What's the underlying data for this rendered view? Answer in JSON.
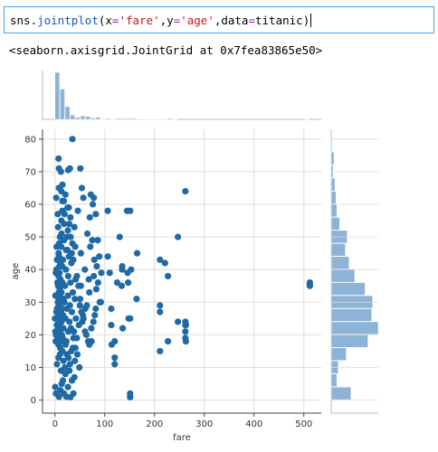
{
  "cell": {
    "code_parts": [
      "sns.",
      "jointplot",
      "(",
      "x",
      "=",
      "'fare'",
      ",",
      "y",
      "=",
      "'age'",
      ",",
      "data",
      "=",
      "titanic",
      ")"
    ],
    "output": "<seaborn.axisgrid.JointGrid at 0x7fea83865e50>"
  },
  "colors": {
    "point": "#1f6aa5",
    "hist": "#8db3d6",
    "grid": "#dddddd",
    "spine": "#444444",
    "focus_border": "#42a5f5"
  },
  "chart_data": {
    "type": "scatter",
    "xlabel": "fare",
    "ylabel": "age",
    "xlim": [
      -25,
      535
    ],
    "ylim": [
      -4,
      83
    ],
    "xticks": [
      0,
      100,
      200,
      300,
      400,
      500
    ],
    "yticks": [
      0,
      10,
      20,
      30,
      40,
      50,
      60,
      70,
      80
    ],
    "grid": true,
    "points": [
      [
        0,
        25
      ],
      [
        2,
        20
      ],
      [
        3,
        40
      ],
      [
        4,
        28
      ],
      [
        5,
        36
      ],
      [
        5,
        19
      ],
      [
        6,
        30
      ],
      [
        7,
        22
      ],
      [
        7,
        26
      ],
      [
        7.2,
        38
      ],
      [
        7.2,
        17
      ],
      [
        7.5,
        45
      ],
      [
        7.7,
        31
      ],
      [
        7.8,
        24
      ],
      [
        7.8,
        29
      ],
      [
        7.9,
        35
      ],
      [
        8,
        21
      ],
      [
        8,
        33
      ],
      [
        8,
        27
      ],
      [
        8.05,
        44
      ],
      [
        8.1,
        18
      ],
      [
        8.5,
        48
      ],
      [
        8.7,
        25
      ],
      [
        9,
        23
      ],
      [
        9.2,
        39
      ],
      [
        9.5,
        34
      ],
      [
        9.8,
        32
      ],
      [
        10,
        50
      ],
      [
        10,
        29
      ],
      [
        10.5,
        16
      ],
      [
        11,
        42
      ],
      [
        11,
        37
      ],
      [
        11.5,
        30
      ],
      [
        12,
        27
      ],
      [
        12.5,
        47
      ],
      [
        13,
        24
      ],
      [
        13,
        33
      ],
      [
        13,
        55
      ],
      [
        14,
        20
      ],
      [
        14.4,
        28
      ],
      [
        14.5,
        41
      ],
      [
        15,
        61
      ],
      [
        15,
        36
      ],
      [
        15.5,
        19
      ],
      [
        16,
        26
      ],
      [
        16,
        43
      ],
      [
        16.7,
        31
      ],
      [
        17,
        22
      ],
      [
        18,
        49
      ],
      [
        19,
        30
      ],
      [
        20,
        35
      ],
      [
        21,
        63
      ],
      [
        21,
        25
      ],
      [
        22,
        40
      ],
      [
        23,
        18
      ],
      [
        24,
        28
      ],
      [
        25,
        46
      ],
      [
        26,
        52
      ],
      [
        26,
        32
      ],
      [
        26.5,
        38
      ],
      [
        27,
        21
      ],
      [
        27.7,
        59
      ],
      [
        28,
        44
      ],
      [
        29,
        24
      ],
      [
        30,
        29
      ],
      [
        31,
        56
      ],
      [
        31,
        36
      ],
      [
        32,
        22
      ],
      [
        33,
        42
      ],
      [
        34,
        27
      ],
      [
        35,
        48
      ],
      [
        36,
        33
      ],
      [
        37,
        19
      ],
      [
        39,
        53
      ],
      [
        40,
        31
      ],
      [
        41.5,
        37
      ],
      [
        42,
        25
      ],
      [
        46,
        58
      ],
      [
        50,
        29
      ],
      [
        52,
        45
      ],
      [
        52,
        35
      ],
      [
        55,
        24
      ],
      [
        57,
        62
      ],
      [
        60,
        40
      ],
      [
        61,
        28
      ],
      [
        65,
        51
      ],
      [
        69,
        33
      ],
      [
        71,
        47
      ],
      [
        73,
        22
      ],
      [
        76,
        60
      ],
      [
        78,
        38
      ],
      [
        79,
        43
      ],
      [
        80,
        26
      ],
      [
        82,
        57
      ],
      [
        83,
        34
      ],
      [
        86,
        49
      ],
      [
        90,
        30
      ],
      [
        93,
        39
      ],
      [
        0.5,
        4
      ],
      [
        2,
        2
      ],
      [
        8,
        1
      ],
      [
        11,
        3
      ],
      [
        13.5,
        5
      ],
      [
        16,
        6
      ],
      [
        18,
        2
      ],
      [
        21,
        8
      ],
      [
        23,
        1
      ],
      [
        26,
        4
      ],
      [
        29,
        9
      ],
      [
        31,
        0.9
      ],
      [
        34,
        6
      ],
      [
        37,
        2
      ],
      [
        39,
        7
      ],
      [
        4,
        11
      ],
      [
        7,
        13
      ],
      [
        10,
        14
      ],
      [
        12,
        9
      ],
      [
        15,
        15
      ],
      [
        17,
        12
      ],
      [
        20,
        10
      ],
      [
        24,
        14
      ],
      [
        27,
        13
      ],
      [
        30,
        11
      ],
      [
        33,
        15
      ],
      [
        36,
        16
      ],
      [
        40,
        12
      ],
      [
        45,
        14
      ],
      [
        49,
        10
      ],
      [
        7.25,
        74
      ],
      [
        8,
        71
      ],
      [
        30,
        71
      ],
      [
        51,
        71
      ],
      [
        35,
        80
      ],
      [
        15,
        66
      ],
      [
        7.8,
        65
      ],
      [
        26.5,
        70.5
      ],
      [
        12,
        70
      ],
      [
        54,
        65
      ],
      [
        72,
        63
      ],
      [
        78,
        62
      ],
      [
        84,
        41
      ],
      [
        75,
        49
      ],
      [
        70,
        56
      ],
      [
        68,
        37
      ],
      [
        64,
        29
      ],
      [
        56,
        26
      ],
      [
        48,
        23
      ],
      [
        44,
        19
      ],
      [
        41,
        16
      ],
      [
        38,
        21
      ],
      [
        21.5,
        17
      ],
      [
        11.2,
        18
      ],
      [
        8.9,
        41
      ],
      [
        10.6,
        33
      ],
      [
        13.3,
        51
      ],
      [
        19.3,
        57
      ],
      [
        25.3,
        59
      ],
      [
        28.6,
        54
      ],
      [
        31.3,
        50
      ],
      [
        33.7,
        45
      ],
      [
        36.8,
        43
      ],
      [
        40.6,
        47
      ],
      [
        44.1,
        38
      ],
      [
        47.2,
        35
      ],
      [
        50.5,
        31
      ],
      [
        53.1,
        27
      ],
      [
        57.2,
        25
      ],
      [
        60.4,
        21
      ],
      [
        63.1,
        20
      ],
      [
        66.6,
        18
      ],
      [
        69.1,
        17
      ],
      [
        73.5,
        18
      ],
      [
        77.3,
        24
      ],
      [
        81.9,
        28
      ],
      [
        86.5,
        36
      ],
      [
        89.1,
        44
      ],
      [
        92.2,
        30
      ],
      [
        2.5,
        62
      ],
      [
        5.5,
        57
      ],
      [
        6.3,
        53
      ],
      [
        3.3,
        47
      ],
      [
        4.1,
        43
      ],
      [
        1.7,
        39
      ],
      [
        6.6,
        35
      ],
      [
        12.9,
        64
      ],
      [
        17.8,
        61
      ],
      [
        14.9,
        58
      ],
      [
        18.3,
        54
      ],
      [
        24.2,
        50
      ],
      [
        22.5,
        46
      ],
      [
        1,
        32
      ],
      [
        0.8,
        21
      ],
      [
        1.5,
        18
      ],
      [
        2.9,
        27
      ],
      [
        3.7,
        23
      ],
      [
        106,
        58
      ],
      [
        106,
        44
      ],
      [
        110,
        39
      ],
      [
        113,
        28
      ],
      [
        113,
        23
      ],
      [
        114,
        17
      ],
      [
        120,
        18
      ],
      [
        120,
        11
      ],
      [
        120,
        13
      ],
      [
        125,
        36
      ],
      [
        130,
        50
      ],
      [
        134,
        35
      ],
      [
        135,
        40
      ],
      [
        135,
        41
      ],
      [
        136,
        22
      ],
      [
        145,
        58
      ],
      [
        146,
        39
      ],
      [
        147,
        36
      ],
      [
        148,
        25
      ],
      [
        151,
        58
      ],
      [
        151,
        2
      ],
      [
        151,
        0.9
      ],
      [
        151,
        25
      ],
      [
        153,
        40
      ],
      [
        164,
        31
      ],
      [
        165,
        45
      ],
      [
        211,
        43
      ],
      [
        211,
        29
      ],
      [
        211,
        27
      ],
      [
        211,
        15
      ],
      [
        221,
        42
      ],
      [
        227,
        38
      ],
      [
        227,
        18
      ],
      [
        247,
        24
      ],
      [
        247,
        50
      ],
      [
        262,
        64
      ],
      [
        262,
        23
      ],
      [
        262,
        24
      ],
      [
        262,
        21
      ],
      [
        262,
        19
      ],
      [
        263,
        18
      ],
      [
        263,
        23
      ],
      [
        512,
        35
      ],
      [
        512,
        36
      ],
      [
        512,
        35.5
      ]
    ],
    "fare_hist_heights": [
      0.96,
      0.62,
      0.26,
      0.09,
      0.04,
      0.07,
      0.06,
      0.03,
      0.04,
      0.01,
      0.02,
      0.01,
      0.02,
      0.02,
      0.02,
      0.02,
      0.01,
      0.01,
      0.01,
      0.01,
      0.01,
      0.01,
      0.02,
      0.01,
      0.0,
      0.0,
      0.0,
      0.0,
      0.0,
      0.0,
      0.0,
      0.0,
      0.0,
      0.0,
      0.0,
      0.0,
      0.0,
      0.0,
      0.0,
      0.0,
      0.0,
      0.0,
      0.0,
      0.0,
      0.0,
      0.0,
      0.0,
      0.0,
      0.0,
      0.01
    ],
    "age_hist_bins": [
      0,
      4,
      8,
      12,
      16,
      20,
      24,
      28,
      32,
      36,
      40,
      44,
      48,
      52,
      56,
      60,
      64,
      68,
      72,
      76,
      80
    ],
    "age_hist_heights": [
      0.42,
      0.12,
      0.15,
      0.32,
      0.78,
      1.0,
      0.86,
      0.88,
      0.72,
      0.5,
      0.38,
      0.3,
      0.34,
      0.18,
      0.12,
      0.1,
      0.08,
      0.04,
      0.06,
      0.02
    ]
  }
}
